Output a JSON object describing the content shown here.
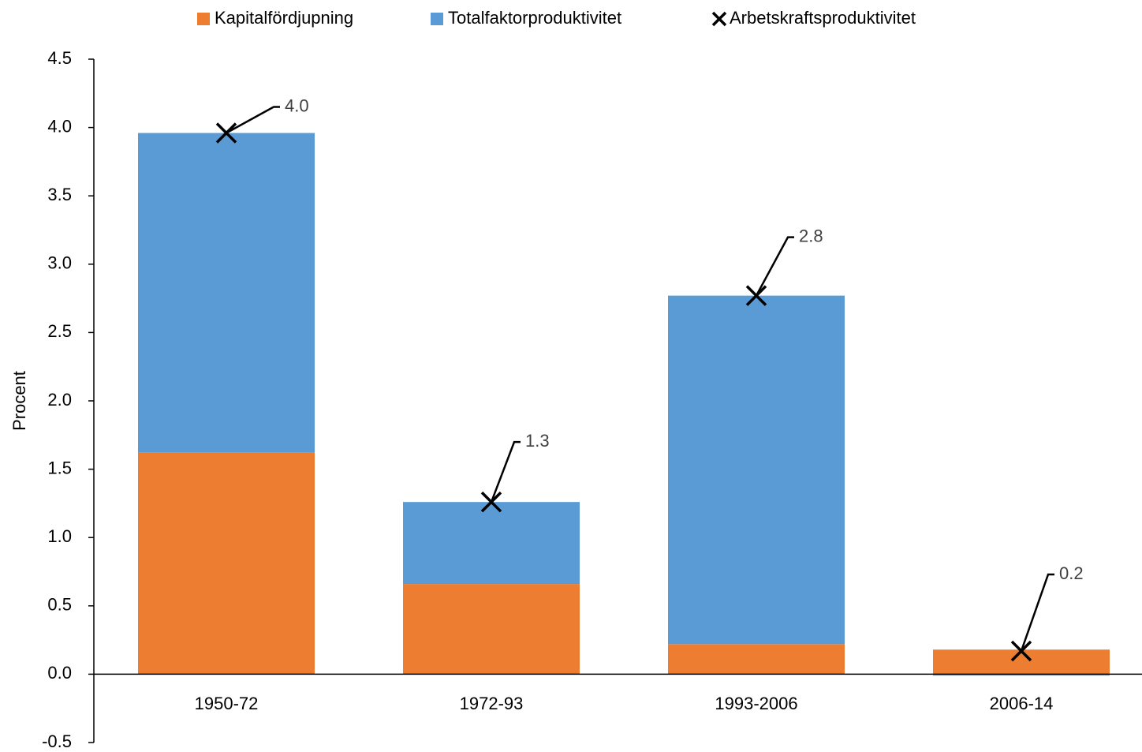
{
  "chart_data": {
    "type": "bar",
    "categories": [
      "1950-72",
      "1972-93",
      "1993-2006",
      "2006-14"
    ],
    "y_label": "Procent",
    "series": [
      {
        "name": "Kapitalfördjupning",
        "color": "#ed7d31",
        "values": [
          1.62,
          0.66,
          0.22,
          0.18
        ]
      },
      {
        "name": "Totalfaktorproduktivitet",
        "color": "#5b9bd5",
        "values": [
          2.34,
          0.6,
          2.55,
          -0.01
        ]
      },
      {
        "name": "Arbetskraftsproduktivitet",
        "color": "#000000",
        "marker": "x",
        "values": [
          3.96,
          1.26,
          2.77,
          0.17
        ],
        "value_labels": [
          "4.0",
          "1.3",
          "2.8",
          "0.2"
        ]
      }
    ],
    "stacked": true,
    "ylim": [
      -0.5,
      4.5
    ],
    "yticks": [
      -0.5,
      {
        "value": 0,
        "label": "0.0"
      },
      0.5,
      {
        "value": 1,
        "label": "1.0"
      },
      1.5,
      {
        "value": 2,
        "label": "2.0"
      },
      2.5,
      {
        "value": 3,
        "label": "3.0"
      },
      3.5,
      {
        "value": 4,
        "label": "4.0"
      },
      4.5
    ],
    "grid": false,
    "legend": "top"
  }
}
